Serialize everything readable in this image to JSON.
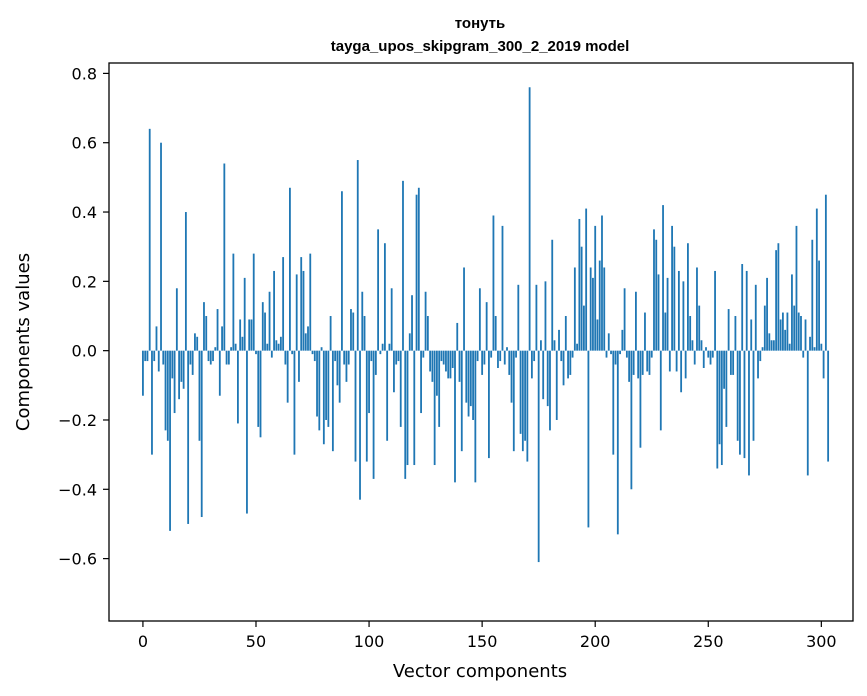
{
  "chart_data": {
    "type": "bar",
    "title": "тонуть",
    "subtitle": "tayga_upos_skipgram_300_2_2019 model",
    "xlabel": "Vector components",
    "ylabel": "Components values",
    "xlim": [
      -15,
      314
    ],
    "ylim": [
      -0.78,
      0.83
    ],
    "x_ticks": [
      0,
      50,
      100,
      150,
      200,
      250,
      300
    ],
    "x_tick_labels": [
      "0",
      "50",
      "100",
      "150",
      "200",
      "250",
      "300"
    ],
    "y_ticks": [
      -0.6,
      -0.4,
      -0.2,
      0.0,
      0.2,
      0.4,
      0.6,
      0.8
    ],
    "y_tick_labels": [
      "−0.6",
      "−0.4",
      "−0.2",
      "0.0",
      "0.2",
      "0.4",
      "0.6",
      "0.8"
    ],
    "bar_color": "#1f77b4",
    "grid": false,
    "series": [
      {
        "values": [
          -0.13,
          -0.03,
          -0.03,
          0.64,
          -0.3,
          -0.03,
          0.07,
          -0.06,
          0.6,
          -0.04,
          -0.23,
          -0.26,
          -0.52,
          -0.08,
          -0.18,
          0.18,
          -0.14,
          -0.09,
          -0.11,
          0.4,
          -0.5,
          -0.04,
          -0.07,
          0.05,
          0.04,
          -0.26,
          -0.48,
          0.14,
          0.1,
          -0.03,
          -0.04,
          -0.03,
          0.01,
          0.12,
          -0.13,
          0.07,
          0.54,
          -0.04,
          -0.04,
          0.01,
          0.28,
          0.02,
          -0.21,
          0.09,
          0.04,
          0.21,
          -0.47,
          0.09,
          0.09,
          0.28,
          -0.01,
          -0.22,
          -0.25,
          0.14,
          0.11,
          0.02,
          0.17,
          -0.02,
          0.23,
          0.03,
          0.02,
          0.04,
          0.27,
          -0.04,
          -0.15,
          0.47,
          -0.01,
          -0.3,
          0.22,
          -0.09,
          0.27,
          0.23,
          0.05,
          0.07,
          0.28,
          -0.01,
          -0.03,
          -0.19,
          -0.23,
          0.01,
          -0.27,
          -0.2,
          -0.22,
          0.1,
          -0.29,
          -0.03,
          -0.1,
          -0.15,
          0.46,
          -0.04,
          -0.09,
          -0.04,
          0.12,
          0.11,
          -0.32,
          0.55,
          -0.43,
          0.17,
          0.1,
          -0.32,
          -0.18,
          -0.03,
          -0.37,
          -0.07,
          0.35,
          -0.01,
          0.02,
          0.31,
          -0.26,
          0.02,
          0.18,
          -0.12,
          -0.04,
          -0.03,
          -0.22,
          0.49,
          -0.37,
          -0.33,
          0.05,
          0.16,
          -0.33,
          0.45,
          0.47,
          -0.18,
          -0.02,
          0.17,
          0.1,
          -0.06,
          -0.09,
          -0.33,
          -0.13,
          -0.22,
          -0.03,
          -0.04,
          -0.06,
          -0.08,
          -0.08,
          -0.05,
          -0.38,
          0.08,
          -0.09,
          -0.29,
          0.24,
          -0.15,
          -0.19,
          -0.16,
          -0.2,
          -0.38,
          -0.03,
          0.18,
          -0.07,
          -0.04,
          0.14,
          -0.31,
          -0.02,
          0.39,
          0.1,
          -0.05,
          -0.03,
          0.36,
          -0.04,
          0.01,
          -0.07,
          -0.15,
          -0.29,
          -0.02,
          0.19,
          -0.24,
          -0.29,
          -0.26,
          -0.32,
          0.76,
          -0.08,
          -0.03,
          0.19,
          -0.61,
          0.03,
          -0.14,
          0.2,
          -0.16,
          -0.23,
          0.32,
          0.03,
          -0.2,
          0.06,
          -0.03,
          -0.1,
          0.1,
          -0.08,
          -0.07,
          -0.02,
          0.24,
          0.02,
          0.38,
          0.3,
          0.13,
          0.41,
          -0.51,
          0.24,
          0.21,
          0.36,
          0.09,
          0.26,
          0.39,
          0.24,
          -0.02,
          0.05,
          -0.01,
          -0.3,
          -0.04,
          -0.53,
          -0.01,
          0.06,
          0.18,
          -0.02,
          -0.09,
          -0.4,
          -0.07,
          0.17,
          -0.08,
          -0.28,
          -0.07,
          0.11,
          -0.06,
          -0.07,
          -0.02,
          0.35,
          0.32,
          0.22,
          -0.23,
          0.42,
          0.11,
          0.21,
          -0.06,
          0.36,
          0.3,
          -0.06,
          0.23,
          -0.12,
          0.2,
          -0.08,
          0.31,
          0.1,
          0.03,
          -0.04,
          0.24,
          0.13,
          0.03,
          -0.05,
          0.01,
          -0.02,
          -0.04,
          -0.02,
          0.23,
          -0.34,
          -0.27,
          -0.33,
          -0.11,
          -0.22,
          0.12,
          -0.07,
          -0.07,
          0.1,
          -0.26,
          -0.3,
          0.25,
          -0.31,
          0.23,
          -0.36,
          0.09,
          -0.26,
          0.19,
          -0.08,
          -0.03,
          0.01,
          0.13,
          0.21,
          0.05,
          0.03,
          0.03,
          0.29,
          0.31,
          0.09,
          0.11,
          0.06,
          0.11,
          0.02,
          0.22,
          0.13,
          0.36,
          0.11,
          0.1,
          -0.02,
          0.09,
          -0.36,
          0.04,
          0.32,
          0.01,
          0.41,
          0.26,
          0.02,
          -0.08,
          0.45,
          -0.32
        ]
      }
    ]
  }
}
